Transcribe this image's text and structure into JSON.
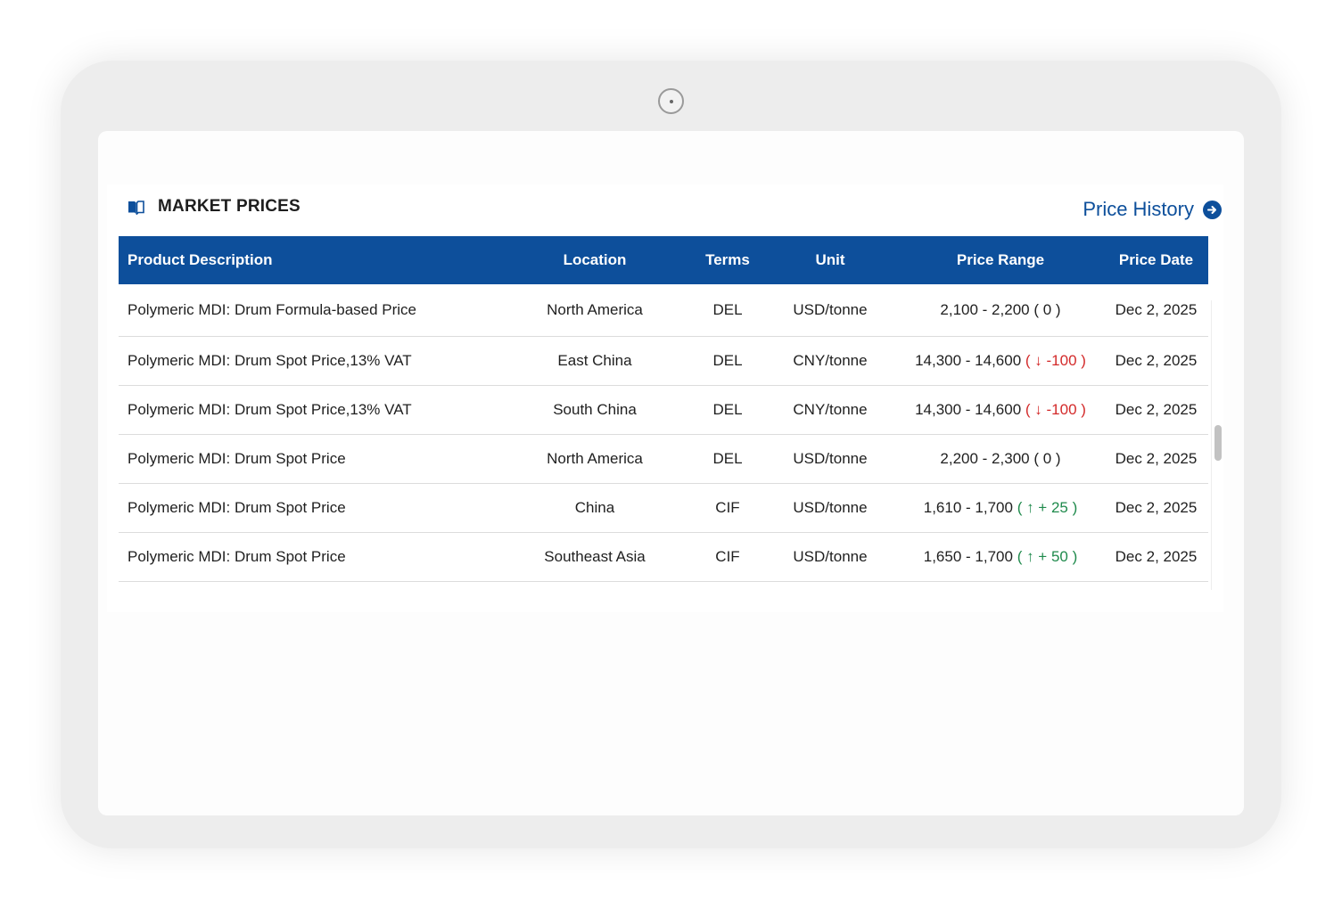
{
  "section": {
    "title": "MARKET PRICES",
    "icon": "book-open-icon",
    "history_link": "Price History",
    "history_icon": "arrow-right-circle-icon"
  },
  "colors": {
    "brand_blue": "#0d4f9b",
    "down_red": "#d32a2a",
    "up_green": "#1f8a4c"
  },
  "table": {
    "columns": [
      "Product Description",
      "Location",
      "Terms",
      "Unit",
      "Price Range",
      "Price Date"
    ],
    "rows": [
      {
        "product": "Polymeric MDI: Drum  Formula-based Price",
        "location": "North America",
        "terms": "DEL",
        "unit": "USD/tonne",
        "range": "2,100 - 2,200",
        "change": "( 0 )",
        "trend": "flat",
        "date": "Dec 2, 2025"
      },
      {
        "product": "Polymeric MDI: Drum  Spot Price,13% VAT",
        "location": "East China",
        "terms": "DEL",
        "unit": "CNY/tonne",
        "range": "14,300 - 14,600",
        "change": "( ↓ -100 )",
        "trend": "down",
        "date": "Dec 2, 2025"
      },
      {
        "product": "Polymeric MDI: Drum  Spot Price,13% VAT",
        "location": "South China",
        "terms": "DEL",
        "unit": "CNY/tonne",
        "range": "14,300 - 14,600",
        "change": "( ↓ -100 )",
        "trend": "down",
        "date": "Dec 2, 2025"
      },
      {
        "product": "Polymeric MDI: Drum  Spot Price",
        "location": "North America",
        "terms": "DEL",
        "unit": "USD/tonne",
        "range": "2,200 - 2,300",
        "change": "( 0 )",
        "trend": "flat",
        "date": "Dec 2, 2025"
      },
      {
        "product": "Polymeric MDI: Drum   Spot Price",
        "location": "China",
        "terms": "CIF",
        "unit": "USD/tonne",
        "range": "1,610 - 1,700",
        "change": "( ↑ + 25 )",
        "trend": "up",
        "date": "Dec 2, 2025"
      },
      {
        "product": "Polymeric MDI: Drum   Spot Price",
        "location": "Southeast Asia",
        "terms": "CIF",
        "unit": "USD/tonne",
        "range": "1,650 - 1,700",
        "change": "( ↑ + 50 )",
        "trend": "up",
        "date": "Dec 2, 2025"
      }
    ]
  }
}
